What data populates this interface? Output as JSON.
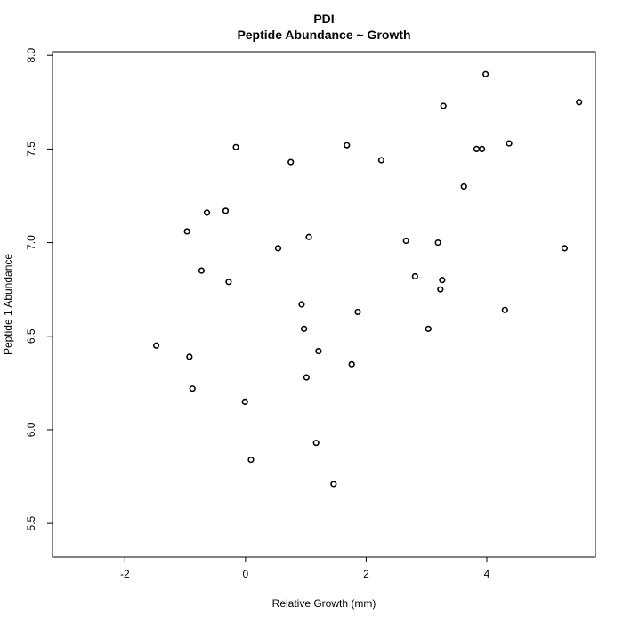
{
  "chart_data": {
    "type": "scatter",
    "title": "PDI",
    "subtitle": "Peptide Abundance ~ Growth",
    "xlabel": "Relative Growth (mm)",
    "ylabel": "Peptide 1 Abundance",
    "xlim": [
      -3.2,
      5.8
    ],
    "ylim": [
      5.32,
      8.02
    ],
    "xticks": [
      -2,
      0,
      2,
      4
    ],
    "yticks": [
      5.5,
      6.0,
      6.5,
      7.0,
      7.5,
      8.0
    ],
    "xtick_labels": [
      "-2",
      "0",
      "2",
      "4"
    ],
    "ytick_labels": [
      "5.5",
      "6.0",
      "6.5",
      "7.0",
      "7.5",
      "8.0"
    ],
    "grid": false,
    "legend": "none",
    "marker": "open-circle",
    "color": "#000000",
    "points": [
      {
        "x": -1.48,
        "y": 6.45
      },
      {
        "x": -0.97,
        "y": 7.06
      },
      {
        "x": -0.93,
        "y": 6.39
      },
      {
        "x": -0.88,
        "y": 6.22
      },
      {
        "x": -0.73,
        "y": 6.85
      },
      {
        "x": -0.64,
        "y": 7.16
      },
      {
        "x": -0.33,
        "y": 7.17
      },
      {
        "x": -0.28,
        "y": 6.79
      },
      {
        "x": -0.16,
        "y": 7.51
      },
      {
        "x": -0.01,
        "y": 6.15
      },
      {
        "x": 0.09,
        "y": 5.84
      },
      {
        "x": 0.54,
        "y": 6.97
      },
      {
        "x": 0.75,
        "y": 7.43
      },
      {
        "x": 0.93,
        "y": 6.67
      },
      {
        "x": 0.97,
        "y": 6.54
      },
      {
        "x": 1.01,
        "y": 6.28
      },
      {
        "x": 1.05,
        "y": 7.03
      },
      {
        "x": 1.17,
        "y": 5.93
      },
      {
        "x": 1.21,
        "y": 6.42
      },
      {
        "x": 1.46,
        "y": 5.71
      },
      {
        "x": 1.68,
        "y": 7.52
      },
      {
        "x": 1.76,
        "y": 6.35
      },
      {
        "x": 1.86,
        "y": 6.63
      },
      {
        "x": 2.25,
        "y": 7.44
      },
      {
        "x": 2.66,
        "y": 7.01
      },
      {
        "x": 2.81,
        "y": 6.82
      },
      {
        "x": 3.03,
        "y": 6.54
      },
      {
        "x": 3.19,
        "y": 7.0
      },
      {
        "x": 3.23,
        "y": 6.75
      },
      {
        "x": 3.26,
        "y": 6.8
      },
      {
        "x": 3.28,
        "y": 7.73
      },
      {
        "x": 3.62,
        "y": 7.3
      },
      {
        "x": 3.83,
        "y": 7.5
      },
      {
        "x": 3.92,
        "y": 7.5
      },
      {
        "x": 3.98,
        "y": 7.9
      },
      {
        "x": 4.3,
        "y": 6.64
      },
      {
        "x": 4.37,
        "y": 7.53
      },
      {
        "x": 5.29,
        "y": 6.97
      },
      {
        "x": 5.53,
        "y": 7.75
      }
    ]
  }
}
